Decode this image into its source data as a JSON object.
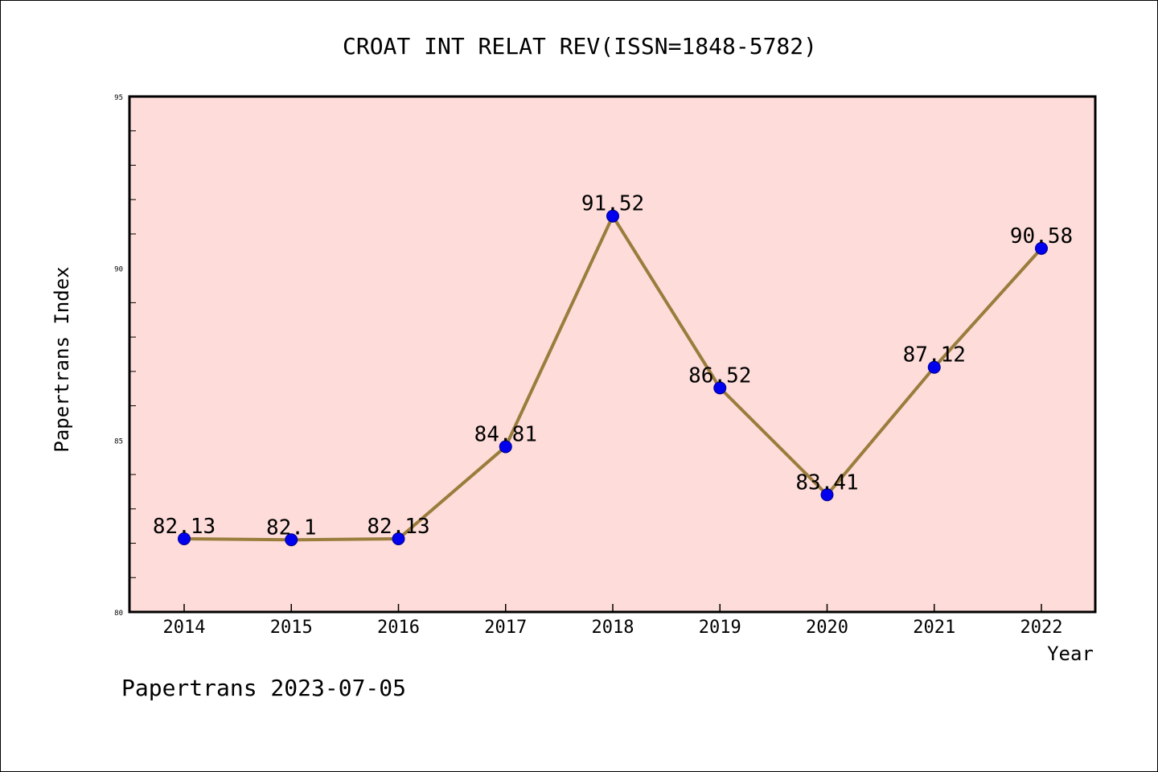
{
  "chart_data": {
    "type": "line",
    "title": "CROAT INT RELAT REV(ISSN=1848-5782)",
    "xlabel": "Year",
    "ylabel": "Papertrans Index",
    "categories": [
      "2014",
      "2015",
      "2016",
      "2017",
      "2018",
      "2019",
      "2020",
      "2021",
      "2022"
    ],
    "values": [
      82.13,
      82.1,
      82.13,
      84.81,
      91.52,
      86.52,
      83.41,
      87.12,
      90.58
    ],
    "data_labels": [
      "82.13",
      "82.1",
      "82.13",
      "84.81",
      "91.52",
      "86.52",
      "83.41",
      "87.12",
      "90.58"
    ],
    "ylim": [
      80,
      95
    ],
    "yticks": [
      "80",
      "85",
      "90",
      "95"
    ],
    "grid": false,
    "legend": "none"
  },
  "footer": {
    "text": "Papertrans 2023-07-05"
  },
  "colors": {
    "plot_background": "#fddcd9",
    "line": "#9a7c3c",
    "marker": "#0000ee",
    "frame": "#000000"
  }
}
